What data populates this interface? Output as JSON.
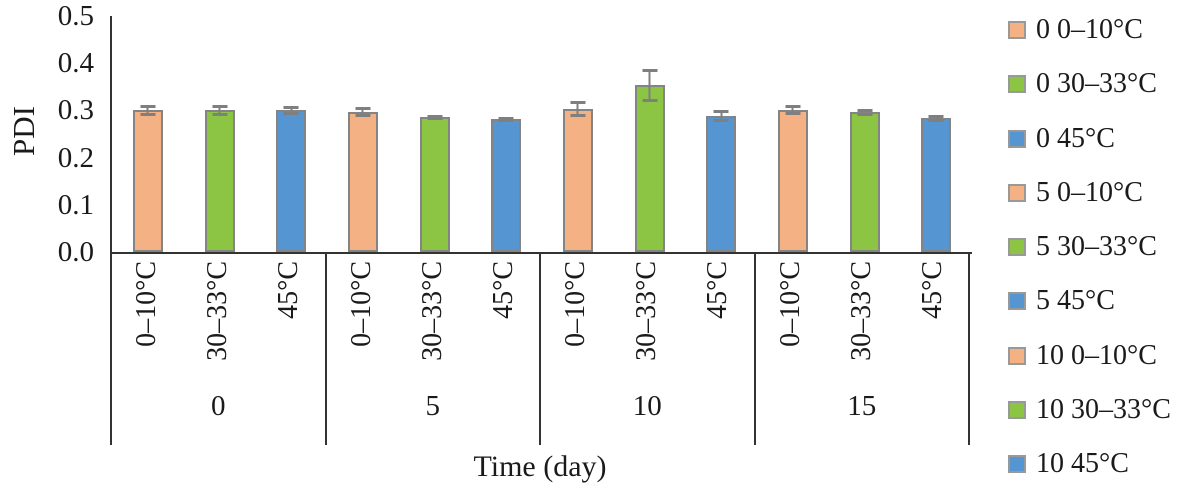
{
  "figure": {
    "background": "#ffffff"
  },
  "chart_data": {
    "type": "bar",
    "title": "",
    "ylabel": "PDI",
    "xlabel": "Time (day)",
    "ylim": [
      0,
      0.5
    ],
    "ytick_labels": [
      "0.5",
      "0.4",
      "0.3",
      "0.2",
      "0.1",
      "0.0"
    ],
    "grid": false,
    "legend_position": "right",
    "groups": [
      "0",
      "5",
      "10",
      "15"
    ],
    "subcategories": [
      "0–10°C",
      "30–33°C",
      "45°C"
    ],
    "series_colors": [
      "#F4B183",
      "#8CC544",
      "#5596D2"
    ],
    "bar_border_color": "#848484",
    "error_bar_color": "#7F7F7F",
    "axis_color": "#333333",
    "values": [
      [
        0.3,
        0.3,
        0.3
      ],
      [
        0.297,
        0.285,
        0.281
      ],
      [
        0.303,
        0.353,
        0.288
      ],
      [
        0.301,
        0.296,
        0.283
      ]
    ],
    "errors": [
      [
        0.012,
        0.012,
        0.01
      ],
      [
        0.01,
        0.006,
        0.006
      ],
      [
        0.018,
        0.035,
        0.012
      ],
      [
        0.01,
        0.008,
        0.008
      ]
    ],
    "legend": [
      {
        "label": "0 0–10°C",
        "color": "#F4B183"
      },
      {
        "label": "0 30–33°C",
        "color": "#8CC544"
      },
      {
        "label": "0 45°C",
        "color": "#5596D2"
      },
      {
        "label": "5 0–10°C",
        "color": "#F4B183"
      },
      {
        "label": "5 30–33°C",
        "color": "#8CC544"
      },
      {
        "label": "5 45°C",
        "color": "#5596D2"
      },
      {
        "label": "10 0–10°C",
        "color": "#F4B183"
      },
      {
        "label": "10 30–33°C",
        "color": "#8CC544"
      },
      {
        "label": "10 45°C",
        "color": "#5596D2"
      }
    ]
  }
}
